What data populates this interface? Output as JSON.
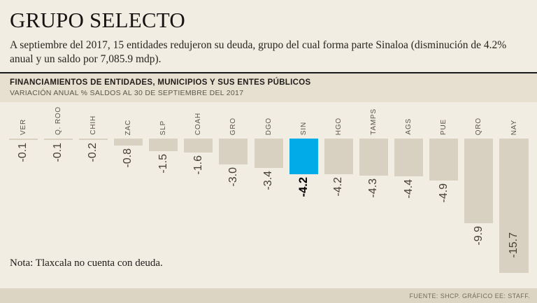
{
  "page": {
    "title": "GRUPO SELECTO",
    "subtitle": "A septiembre del 2017, 15 entidades redujeron su deuda, grupo del cual forma parte Sinaloa (disminución de 4.2% anual y un saldo por 7,085.9 mdp).",
    "note": "Nota: Tlaxcala no cuenta con deuda.",
    "source": "FUENTE: SHCP. GRÁFICO EE: STAFF."
  },
  "chart_header": {
    "title": "FINANCIAMIENTOS DE ENTIDADES, MUNICIPIOS Y SUS ENTES PÚBLICOS",
    "subtitle": "VARIACIÓN ANUAL % SALDOS AL 30 DE SEPTIEMBRE DEL 2017"
  },
  "chart_data": {
    "type": "bar",
    "orientation": "vertical-negative",
    "title": "FINANCIAMIENTOS DE ENTIDADES, MUNICIPIOS Y SUS ENTES PÚBLICOS",
    "subtitle": "VARIACIÓN ANUAL % SALDOS AL 30 DE SEPTIEMBRE DEL 2017",
    "ylabel": "Variación anual %",
    "ylim": [
      -16.5,
      0
    ],
    "grid": false,
    "legend": false,
    "categories": [
      "VER",
      "Q. ROO",
      "CHIH",
      "ZAC",
      "SLP",
      "COAH",
      "GRO",
      "DGO",
      "SIN",
      "HGO",
      "TAMPS",
      "AGS",
      "PUE",
      "QRO",
      "NAY"
    ],
    "values": [
      -0.1,
      -0.1,
      -0.2,
      -0.8,
      -1.5,
      -1.6,
      -3.0,
      -3.4,
      -4.2,
      -4.2,
      -4.3,
      -4.4,
      -4.9,
      -9.9,
      -15.7
    ],
    "value_labels": [
      "-0.1",
      "-0.1",
      "-0.2",
      "-0.8",
      "-1.5",
      "-1.6",
      "-3.0",
      "-3.4",
      "-4.2",
      "-4.2",
      "-4.3",
      "-4.4",
      "-4.9",
      "-9.9",
      "-15.7"
    ],
    "highlight_category": "SIN",
    "highlight_index": 8,
    "colors": {
      "bar": "#d8d1c2",
      "highlight": "#00abe8",
      "background": "#f2ede2"
    }
  }
}
